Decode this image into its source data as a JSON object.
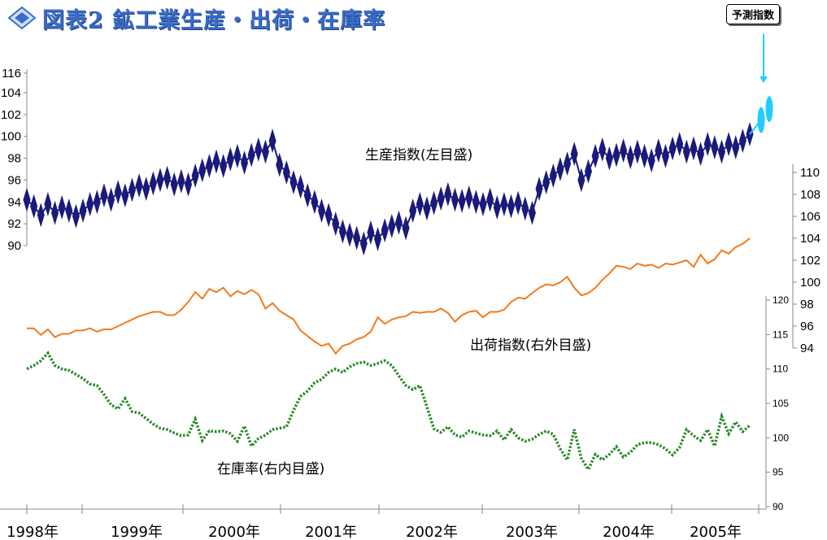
{
  "title": "図表2 鉱工業生産・出荷・在庫率",
  "forecast_label": "予測指数",
  "annotations": {
    "production": "生産指数(左目盛)",
    "shipment": "出荷指数(右外目盛)",
    "inventory": "在庫率(右内目盛)"
  },
  "colors": {
    "production": "#1a1a7a",
    "shipment": "#f07a1e",
    "inventory": "#2a8a2a",
    "forecast": "#22ccff",
    "title": "#3a6cc8"
  },
  "chart_data": {
    "type": "line",
    "x_labels": [
      "1998年",
      "1999年",
      "2000年",
      "2001年",
      "2002年",
      "2003年",
      "2004年",
      "2005年"
    ],
    "axes": {
      "left": {
        "ticks": [
          90,
          92,
          94,
          96,
          98,
          100,
          102,
          104,
          116
        ],
        "range": [
          90,
          116
        ],
        "note": "broken axis between 104 and 116"
      },
      "right_outer": {
        "ticks": [
          94,
          96,
          98,
          100,
          102,
          104,
          106,
          108,
          110
        ],
        "range": [
          94,
          110
        ]
      },
      "right_inner": {
        "ticks": [
          90,
          95,
          100,
          105,
          110,
          115,
          120
        ],
        "range": [
          90,
          120
        ]
      }
    },
    "series": [
      {
        "name": "生産指数(左目盛)",
        "axis": "left",
        "marker": "diamond",
        "values": [
          94.2,
          93.6,
          92.8,
          93.8,
          93.0,
          93.5,
          93.2,
          92.7,
          93.2,
          93.8,
          94.0,
          94.6,
          94.2,
          94.9,
          94.6,
          95.1,
          95.5,
          95.2,
          95.7,
          96.0,
          96.2,
          95.6,
          95.9,
          95.6,
          96.4,
          96.9,
          97.3,
          97.7,
          97.3,
          97.9,
          98.2,
          97.6,
          98.3,
          98.8,
          98.6,
          99.6,
          97.4,
          96.7,
          95.8,
          95.4,
          94.6,
          94.0,
          93.2,
          92.8,
          92.0,
          91.3,
          91.0,
          90.7,
          90.2,
          91.2,
          90.6,
          91.4,
          91.8,
          92.1,
          91.6,
          93.2,
          93.8,
          93.4,
          93.9,
          94.3,
          94.7,
          94.2,
          94.1,
          94.4,
          94.0,
          93.8,
          94.2,
          93.5,
          93.8,
          93.6,
          93.9,
          93.4,
          93.0,
          95.2,
          95.8,
          96.4,
          97.0,
          97.5,
          98.4,
          96.0,
          96.8,
          98.2,
          98.8,
          98.0,
          98.3,
          98.7,
          98.1,
          98.6,
          98.2,
          97.8,
          98.7,
          98.2,
          98.9,
          99.3,
          98.6,
          98.9,
          98.4,
          99.3,
          99.0,
          98.6,
          99.3,
          99.0,
          99.6,
          100.2
        ]
      },
      {
        "name": "予測指数",
        "axis": "left",
        "marker": "ellipse",
        "values": [
          101.5,
          102.5
        ]
      },
      {
        "name": "出荷指数(右外目盛)",
        "axis": "right_outer",
        "values": [
          95.8,
          95.8,
          95.2,
          95.7,
          95.0,
          95.3,
          95.3,
          95.6,
          95.6,
          95.8,
          95.5,
          95.7,
          95.7,
          96.0,
          96.3,
          96.6,
          96.9,
          97.1,
          97.3,
          97.3,
          97.0,
          97.0,
          97.5,
          98.2,
          99.1,
          98.5,
          99.4,
          99.1,
          99.5,
          98.7,
          99.2,
          98.9,
          99.3,
          98.9,
          97.6,
          98.1,
          97.4,
          97.0,
          96.6,
          95.6,
          95.1,
          94.6,
          94.2,
          94.4,
          93.5,
          94.2,
          94.4,
          94.8,
          95.0,
          95.5,
          96.8,
          96.2,
          96.6,
          96.8,
          96.9,
          97.3,
          97.2,
          97.3,
          97.3,
          97.6,
          97.2,
          96.4,
          97.0,
          97.3,
          97.4,
          96.8,
          97.3,
          97.3,
          97.5,
          98.2,
          98.6,
          98.5,
          99.0,
          99.5,
          99.8,
          99.7,
          100.0,
          100.5,
          99.5,
          98.8,
          99.0,
          99.5,
          100.2,
          100.8,
          101.5,
          101.4,
          101.2,
          101.7,
          101.5,
          101.6,
          101.3,
          101.7,
          101.6,
          101.8,
          102.0,
          101.4,
          102.5,
          101.7,
          102.1,
          102.9,
          102.6,
          103.2,
          103.5,
          104.0
        ]
      },
      {
        "name": "在庫率(右内目盛)",
        "axis": "right_inner",
        "values": [
          110.0,
          110.5,
          111.2,
          112.3,
          110.5,
          110.0,
          109.8,
          109.2,
          108.6,
          107.8,
          107.6,
          106.3,
          104.8,
          104.2,
          105.7,
          103.8,
          103.6,
          102.8,
          102.0,
          101.4,
          101.2,
          100.7,
          100.3,
          100.4,
          102.7,
          99.6,
          101.0,
          100.9,
          101.0,
          100.6,
          99.5,
          101.7,
          98.8,
          99.9,
          100.4,
          101.2,
          101.4,
          101.6,
          104.0,
          106.0,
          106.8,
          108.0,
          108.5,
          109.5,
          110.0,
          109.5,
          110.3,
          110.8,
          111.0,
          110.5,
          110.8,
          111.2,
          110.5,
          109.0,
          107.6,
          107.0,
          107.6,
          104.5,
          101.3,
          100.8,
          101.6,
          100.4,
          100.1,
          101.0,
          100.7,
          100.4,
          100.3,
          101.0,
          99.7,
          101.2,
          100.0,
          99.5,
          99.8,
          100.5,
          101.0,
          100.5,
          98.4,
          96.8,
          101.2,
          97.0,
          95.4,
          97.6,
          96.8,
          97.6,
          98.7,
          97.2,
          97.9,
          99.0,
          99.3,
          99.3,
          99.0,
          98.4,
          97.5,
          98.6,
          101.2,
          100.3,
          99.6,
          101.2,
          98.8,
          103.1,
          100.6,
          102.3,
          100.9,
          101.8
        ]
      }
    ]
  }
}
